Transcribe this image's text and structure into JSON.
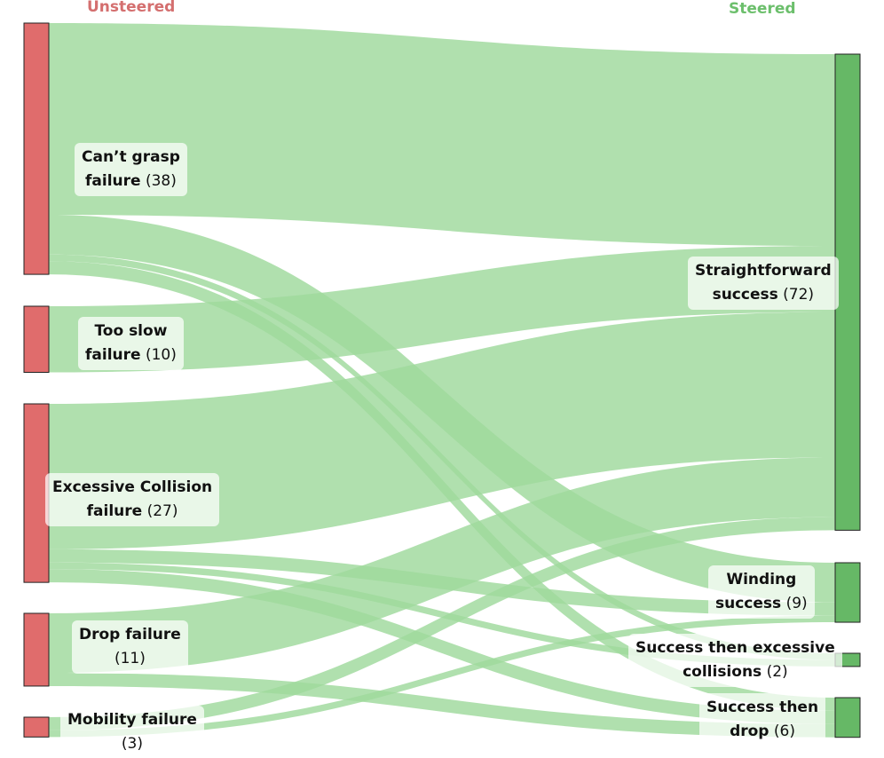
{
  "headers": {
    "left": "Unsteered",
    "right": "Steered"
  },
  "colors": {
    "unsteered": "#e06c6c",
    "steered": "#66b866",
    "flow": "#9fd99c"
  },
  "left_nodes": [
    {
      "id": "cant_grasp",
      "name_l1": "Can’t grasp",
      "name_l2": "failure",
      "count": "(38)",
      "value": 38
    },
    {
      "id": "too_slow",
      "name_l1": "Too slow",
      "name_l2": "failure",
      "count": "(10)",
      "value": 10
    },
    {
      "id": "collision",
      "name_l1": "Excessive Collision",
      "name_l2": "failure",
      "count": "(27)",
      "value": 27
    },
    {
      "id": "drop",
      "name_l1": "Drop failure",
      "name_l2": "",
      "count": "(11)",
      "value": 11
    },
    {
      "id": "mobility",
      "name_l1": "Mobility failure",
      "name_l2": "",
      "count": "(3)",
      "value": 3
    }
  ],
  "right_nodes": [
    {
      "id": "straightforward",
      "name_l1": "Straightforward",
      "name_l2": "success",
      "count": "(72)",
      "value": 72
    },
    {
      "id": "winding",
      "name_l1": "Winding",
      "name_l2": "success",
      "count": "(9)",
      "value": 9
    },
    {
      "id": "succ_collision",
      "name_l1": "Success then excessive",
      "name_l2": "collisions",
      "count": "(2)",
      "value": 2
    },
    {
      "id": "succ_drop",
      "name_l1": "Success then",
      "name_l2": "drop",
      "count": "(6)",
      "value": 6
    }
  ],
  "flows": [
    {
      "source": "cant_grasp",
      "target": "straightforward",
      "value": 29
    },
    {
      "source": "cant_grasp",
      "target": "winding",
      "value": 6
    },
    {
      "source": "cant_grasp",
      "target": "succ_collision",
      "value": 1
    },
    {
      "source": "cant_grasp",
      "target": "succ_drop",
      "value": 2
    },
    {
      "source": "too_slow",
      "target": "straightforward",
      "value": 10
    },
    {
      "source": "collision",
      "target": "straightforward",
      "value": 22
    },
    {
      "source": "collision",
      "target": "winding",
      "value": 2
    },
    {
      "source": "collision",
      "target": "succ_collision",
      "value": 1
    },
    {
      "source": "collision",
      "target": "succ_drop",
      "value": 2
    },
    {
      "source": "drop",
      "target": "straightforward",
      "value": 9
    },
    {
      "source": "drop",
      "target": "succ_drop",
      "value": 2
    },
    {
      "source": "mobility",
      "target": "straightforward",
      "value": 2
    },
    {
      "source": "mobility",
      "target": "winding",
      "value": 1
    }
  ]
}
